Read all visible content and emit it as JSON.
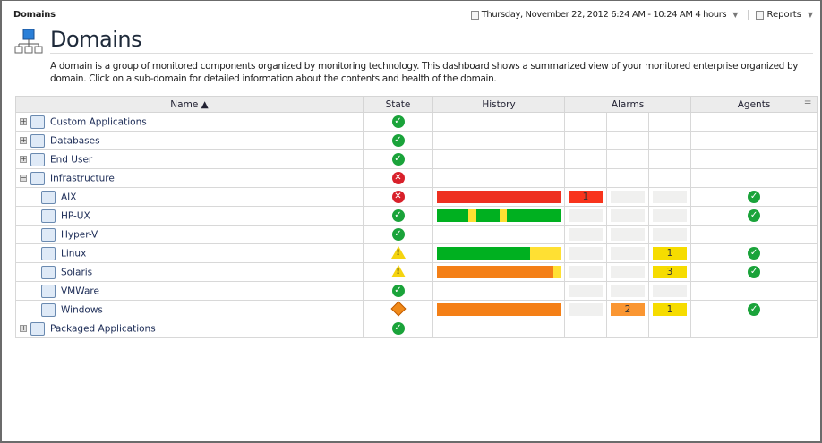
{
  "header": {
    "breadcrumb": "Domains",
    "time_range": "Thursday, November 22, 2012 6:24 AM - 10:24 AM 4 hours",
    "reports_label": "Reports"
  },
  "page": {
    "title": "Domains",
    "description": "A domain is a group of monitored components organized by monitoring technology. This dashboard shows a summarized view of your monitored enterprise organized by domain. Click on a sub-domain for detailed information about the contents and health of the domain."
  },
  "table": {
    "columns": {
      "name": "Name ▲",
      "state": "State",
      "history": "History",
      "alarms": "Alarms",
      "agents": "Agents"
    },
    "colors": {
      "green": "#00b020",
      "yellow": "#ffe033",
      "orange": "#f47f16",
      "red": "#ee3020",
      "alarm_fatal": "#f8341c",
      "alarm_critical": "#fa9632",
      "alarm_warning": "#f6dc00"
    },
    "rows": [
      {
        "name": "Custom Applications",
        "level": 0,
        "expander": "+",
        "icon": "custom-app-icon",
        "state": "ok",
        "history": [],
        "alarms": null,
        "agents": false
      },
      {
        "name": "Databases",
        "level": 0,
        "expander": "+",
        "icon": "database-icon",
        "state": "ok",
        "history": [],
        "alarms": null,
        "agents": false
      },
      {
        "name": "End User",
        "level": 0,
        "expander": "+",
        "icon": "user-icon",
        "state": "ok",
        "history": [],
        "alarms": null,
        "agents": false
      },
      {
        "name": "Infrastructure",
        "level": 0,
        "expander": "−",
        "icon": "infrastructure-icon",
        "state": "fatal",
        "history": [],
        "alarms": null,
        "agents": false
      },
      {
        "name": "AIX",
        "level": 1,
        "icon": "aix-icon",
        "state": "fatal",
        "history": [
          [
            "red",
            1
          ]
        ],
        "alarms": [
          "1",
          "",
          ""
        ],
        "agents": true
      },
      {
        "name": "HP-UX",
        "level": 1,
        "icon": "hpux-icon",
        "state": "ok",
        "history": [
          [
            "green",
            0.256
          ],
          [
            "yellow",
            0.06
          ],
          [
            "green",
            0.188
          ],
          [
            "yellow",
            0.06
          ],
          [
            "green",
            0.436
          ]
        ],
        "alarms": [
          "",
          "",
          ""
        ],
        "agents": true
      },
      {
        "name": "Hyper-V",
        "level": 1,
        "icon": "hyperv-icon",
        "state": "ok",
        "history": [],
        "alarms": [
          "",
          "",
          ""
        ],
        "agents": false
      },
      {
        "name": "Linux",
        "level": 1,
        "icon": "linux-icon",
        "state": "warning",
        "history": [
          [
            "green",
            0.75
          ],
          [
            "yellow",
            0.25
          ]
        ],
        "alarms": [
          "",
          "",
          "1"
        ],
        "agents": true
      },
      {
        "name": "Solaris",
        "level": 1,
        "icon": "solaris-icon",
        "state": "warning",
        "history": [
          [
            "orange",
            0.94
          ],
          [
            "yellow",
            0.06
          ]
        ],
        "alarms": [
          "",
          "",
          "3"
        ],
        "agents": true
      },
      {
        "name": "VMWare",
        "level": 1,
        "icon": "vmware-icon",
        "state": "ok",
        "history": [],
        "alarms": [
          "",
          "",
          ""
        ],
        "agents": false
      },
      {
        "name": "Windows",
        "level": 1,
        "icon": "windows-icon",
        "state": "critical",
        "history": [
          [
            "orange",
            1
          ]
        ],
        "alarms": [
          "",
          "2",
          "1"
        ],
        "agents": true
      },
      {
        "name": "Packaged Applications",
        "level": 0,
        "expander": "+",
        "icon": "packaged-app-icon",
        "state": "ok",
        "history": [],
        "alarms": null,
        "agents": false
      }
    ]
  }
}
